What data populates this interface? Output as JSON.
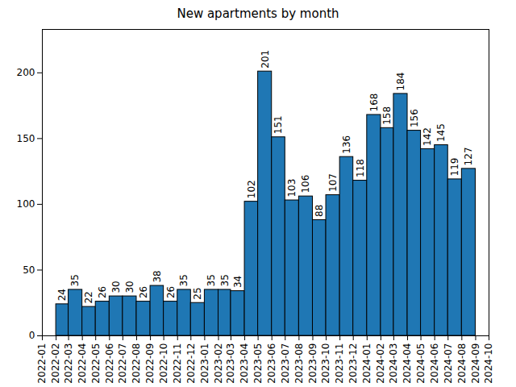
{
  "chart_data": {
    "type": "histogram",
    "title": "New apartments by month",
    "bins": [
      "2022-02",
      "2022-03",
      "2022-04",
      "2022-05",
      "2022-06",
      "2022-07",
      "2022-08",
      "2022-09",
      "2022-10",
      "2022-11",
      "2022-12",
      "2023-01",
      "2023-02",
      "2023-03",
      "2023-04",
      "2023-05",
      "2023-06",
      "2023-07",
      "2023-08",
      "2023-09",
      "2023-10",
      "2023-11",
      "2023-12",
      "2024-01",
      "2024-02",
      "2024-03",
      "2024-04",
      "2024-05",
      "2024-06",
      "2024-07",
      "2024-08",
      "2024-09"
    ],
    "values": [
      24,
      35,
      22,
      26,
      30,
      30,
      26,
      38,
      26,
      35,
      25,
      35,
      35,
      34,
      102,
      201,
      151,
      103,
      106,
      88,
      107,
      136,
      118,
      168,
      158,
      184,
      156,
      142,
      145,
      119,
      127
    ],
    "color": "#1f77b4",
    "xlim": [
      "2022-01",
      "2024-10"
    ],
    "xticks": [
      "2022-01",
      "2022-02",
      "2022-03",
      "2022-04",
      "2022-05",
      "2022-06",
      "2022-07",
      "2022-08",
      "2022-09",
      "2022-10",
      "2022-11",
      "2022-12",
      "2023-01",
      "2023-02",
      "2023-03",
      "2023-04",
      "2023-05",
      "2023-06",
      "2023-07",
      "2023-08",
      "2023-09",
      "2023-10",
      "2023-11",
      "2023-12",
      "2024-01",
      "2024-02",
      "2024-03",
      "2024-04",
      "2024-05",
      "2024-06",
      "2024-07",
      "2024-08",
      "2024-09",
      "2024-10"
    ],
    "ylim": [
      0,
      233
    ],
    "yticks": [
      0,
      50,
      100,
      150,
      200
    ],
    "data_labels": true
  }
}
